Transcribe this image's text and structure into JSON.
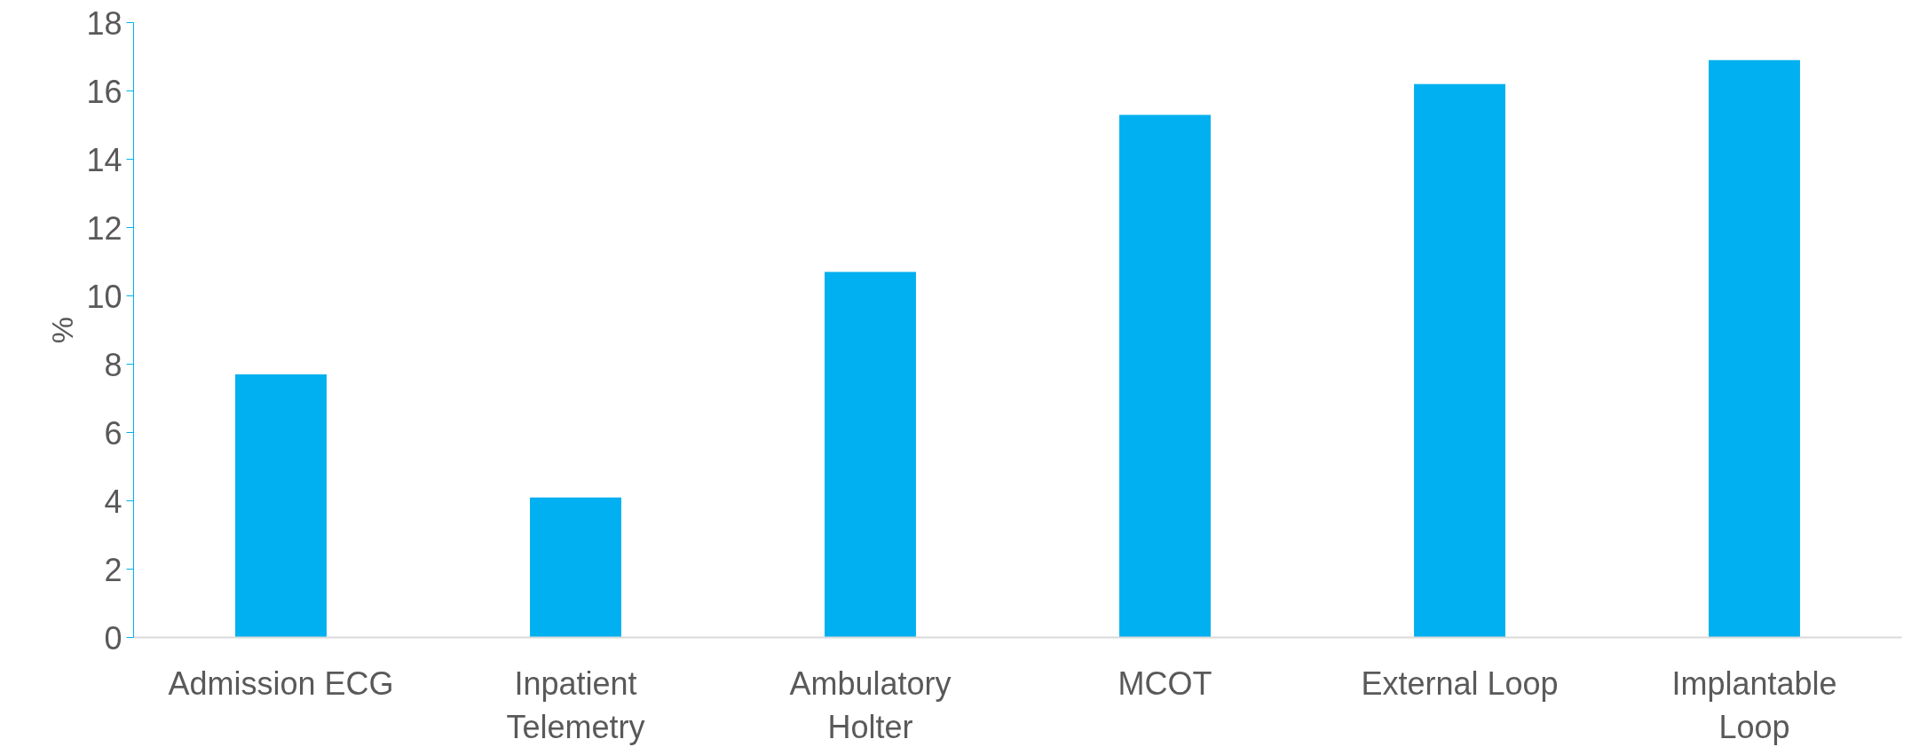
{
  "chart_data": {
    "type": "bar",
    "ylabel": "%",
    "categories": [
      "Admission ECG",
      "Inpatient Telemetry",
      "Ambulatory Holter",
      "MCOT",
      "External Loop",
      "Implantable Loop"
    ],
    "values": [
      7.7,
      4.1,
      10.7,
      15.3,
      16.2,
      16.9
    ],
    "color": "#00b0f0",
    "ylim": [
      0,
      18
    ],
    "yticks": [
      0,
      2,
      4,
      6,
      8,
      10,
      12,
      14,
      16,
      18
    ],
    "grid": false
  }
}
